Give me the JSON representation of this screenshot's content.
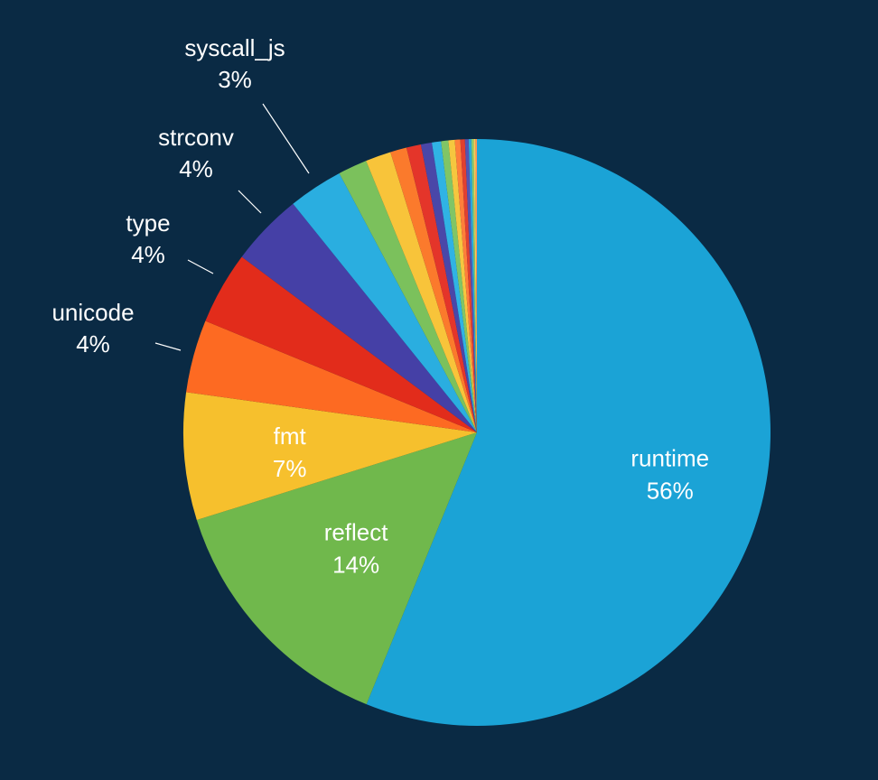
{
  "chart_data": {
    "type": "pie",
    "slices": [
      {
        "label": "runtime",
        "value": 56,
        "value_label": "56%",
        "color": "#1ba3d6",
        "labeled": true,
        "label_placement": "inside"
      },
      {
        "label": "reflect",
        "value": 14,
        "value_label": "14%",
        "color": "#70b84c",
        "labeled": true,
        "label_placement": "inside"
      },
      {
        "label": "fmt",
        "value": 7,
        "value_label": "7%",
        "color": "#f6c02d",
        "labeled": true,
        "label_placement": "inside"
      },
      {
        "label": "unicode",
        "value": 4,
        "value_label": "4%",
        "color": "#fd6a22",
        "labeled": true,
        "label_placement": "outside"
      },
      {
        "label": "type",
        "value": 4,
        "value_label": "4%",
        "color": "#e22c1b",
        "labeled": true,
        "label_placement": "outside"
      },
      {
        "label": "strconv",
        "value": 4,
        "value_label": "4%",
        "color": "#4540a6",
        "labeled": true,
        "label_placement": "outside"
      },
      {
        "label": "syscall_js",
        "value": 3,
        "value_label": "3%",
        "color": "#2aaee0",
        "labeled": true,
        "label_placement": "outside"
      },
      {
        "label": "",
        "value": 1.6,
        "value_label": "",
        "color": "#7bc15c",
        "labeled": false
      },
      {
        "label": "",
        "value": 1.4,
        "value_label": "",
        "color": "#f8c43a",
        "labeled": false
      },
      {
        "label": "",
        "value": 0.9,
        "value_label": "",
        "color": "#fb7a2c",
        "labeled": false
      },
      {
        "label": "",
        "value": 0.8,
        "value_label": "",
        "color": "#e4352a",
        "labeled": false
      },
      {
        "label": "",
        "value": 0.6,
        "value_label": "",
        "color": "#4a47a8",
        "labeled": false
      },
      {
        "label": "",
        "value": 0.5,
        "value_label": "",
        "color": "#30b3e4",
        "labeled": false
      },
      {
        "label": "",
        "value": 0.4,
        "value_label": "",
        "color": "#80c566",
        "labeled": false
      },
      {
        "label": "",
        "value": 0.35,
        "value_label": "",
        "color": "#f5c73f",
        "labeled": false
      },
      {
        "label": "",
        "value": 0.3,
        "value_label": "",
        "color": "#ff7f3a",
        "labeled": false
      },
      {
        "label": "",
        "value": 0.25,
        "value_label": "",
        "color": "#e2402f",
        "labeled": false
      },
      {
        "label": "",
        "value": 0.2,
        "value_label": "",
        "color": "#5653b1",
        "labeled": false
      },
      {
        "label": "",
        "value": 0.15,
        "value_label": "",
        "color": "#2aa9de",
        "labeled": false
      },
      {
        "label": "",
        "value": 0.12,
        "value_label": "",
        "color": "#8acb6e",
        "labeled": false
      },
      {
        "label": "",
        "value": 0.1,
        "value_label": "",
        "color": "#f6cf58",
        "labeled": false
      },
      {
        "label": "",
        "value": 0.08,
        "value_label": "",
        "color": "#ff9255",
        "labeled": false
      }
    ],
    "background_color": "#0a2a44",
    "label_color": "#ffffff",
    "legend": "none",
    "title": ""
  }
}
